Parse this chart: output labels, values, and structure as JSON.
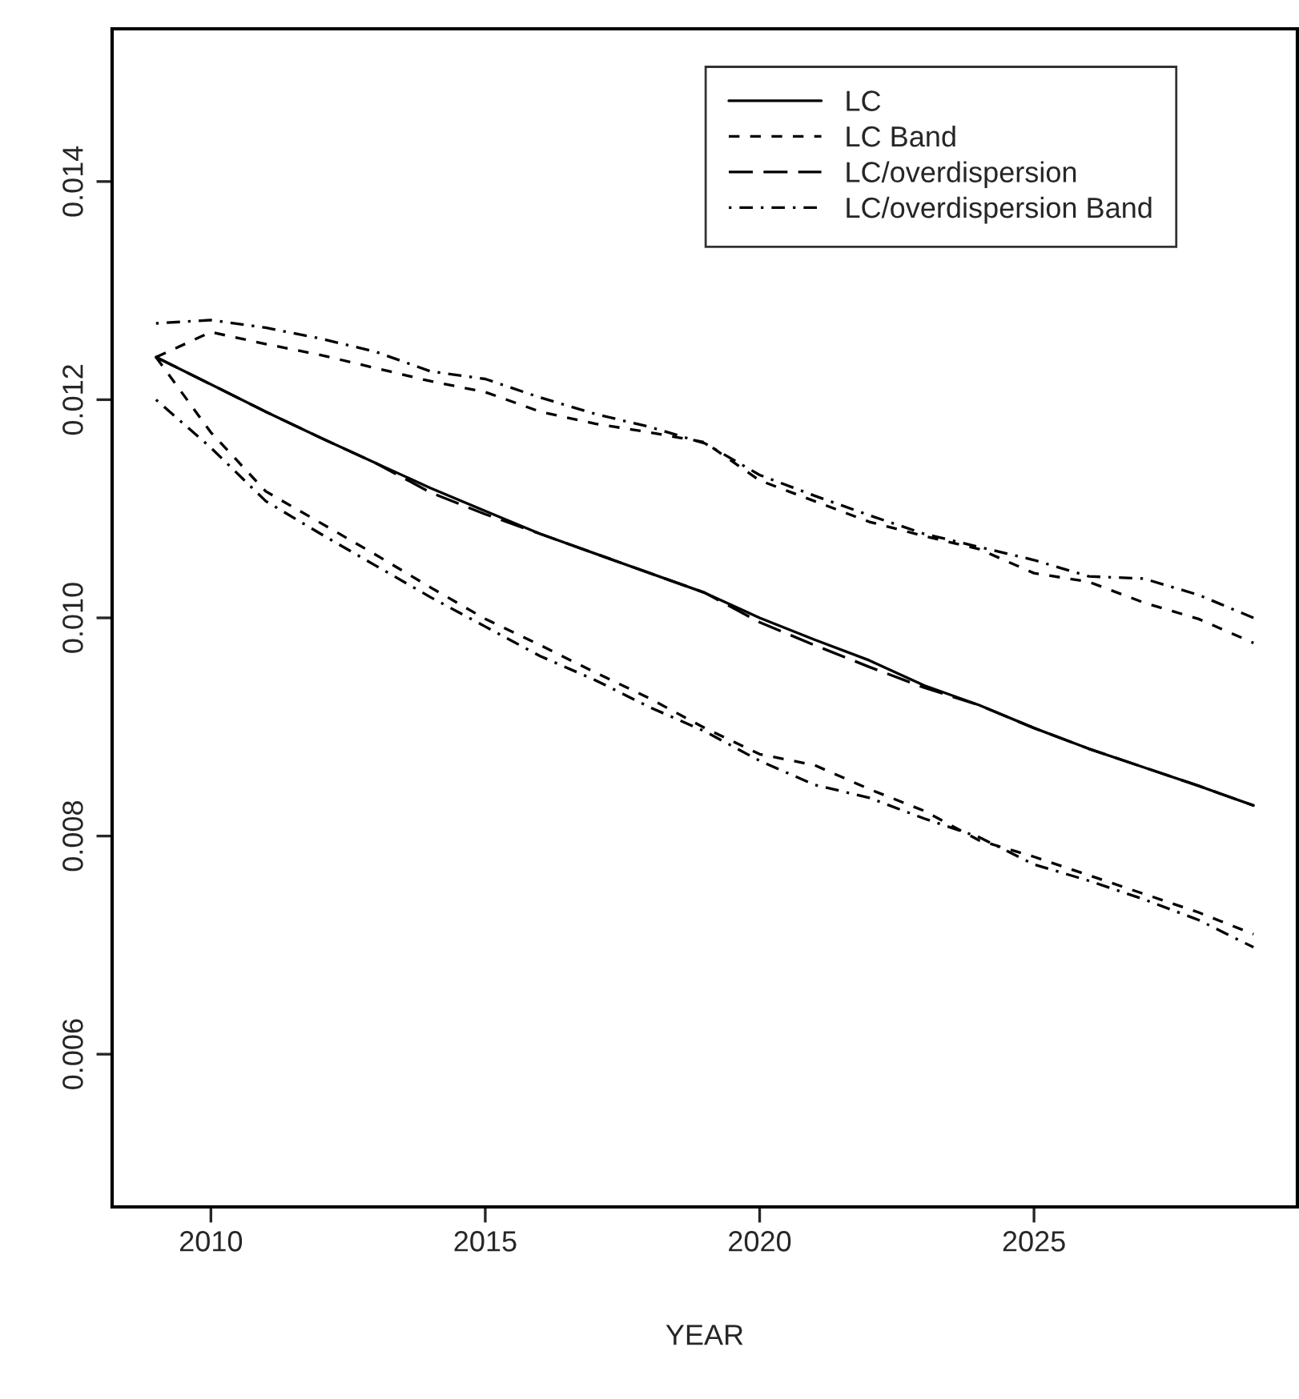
{
  "chart_data": {
    "type": "line",
    "xlabel": "YEAR",
    "x": [
      2009,
      2010,
      2011,
      2012,
      2013,
      2014,
      2015,
      2016,
      2017,
      2018,
      2019,
      2020,
      2021,
      2022,
      2023,
      2024,
      2025,
      2026,
      2027,
      2028,
      2029
    ],
    "xlim": [
      2008.2,
      2029.8
    ],
    "xticks": [
      2010,
      2015,
      2020,
      2025
    ],
    "ylim": [
      0.0046,
      0.0154
    ],
    "yticks": [
      0.006,
      0.008,
      {
        "value": 0.01,
        "label": "0.010"
      },
      0.012,
      0.014
    ],
    "grid": false,
    "legend": "top right",
    "marker": "none",
    "series": [
      {
        "name": "LC",
        "color": "#000000",
        "line_style": "solid",
        "values": [
          0.01239,
          0.01214,
          0.01189,
          0.01165,
          0.01142,
          0.01119,
          0.01098,
          0.01077,
          0.01059,
          0.01041,
          0.01023,
          0.01,
          0.0098,
          0.00961,
          0.00938,
          0.0092,
          0.00899,
          0.0088,
          0.00863,
          0.00846,
          0.00828
        ]
      },
      {
        "name": "LC Band",
        "color": "#000000",
        "line_style": "dashed",
        "values": [
          0.01239,
          0.01262,
          0.01251,
          0.01241,
          0.01229,
          0.01217,
          0.01207,
          0.01189,
          0.01178,
          0.0117,
          0.01161,
          0.01126,
          0.01107,
          0.01088,
          0.01075,
          0.01063,
          0.01041,
          0.01033,
          0.01014,
          0.00999,
          0.00977
        ]
      },
      {
        "name": "LC/overdispersion",
        "color": "#000000",
        "line_style": "longdash",
        "values": [
          0.01239,
          0.01214,
          0.01189,
          0.01165,
          0.01142,
          0.01115,
          0.01095,
          0.01077,
          0.01059,
          0.01041,
          0.01023,
          0.00996,
          0.00975,
          0.00955,
          0.00936,
          0.0092,
          0.00899,
          0.0088,
          0.00863,
          0.00846,
          0.00828
        ]
      },
      {
        "name": "LC/overdispersion Band",
        "color": "#000000",
        "line_style": "dashdot",
        "values": [
          0.0127,
          0.01273,
          0.01266,
          0.01256,
          0.01244,
          0.01226,
          0.01219,
          0.01202,
          0.01187,
          0.01175,
          0.0116,
          0.01131,
          0.01112,
          0.01094,
          0.01077,
          0.01065,
          0.01053,
          0.01038,
          0.01036,
          0.01021,
          0.01
        ]
      },
      {
        "color": "#000000",
        "line_style": "dashed",
        "values": [
          0.01239,
          0.0117,
          0.01116,
          0.01087,
          0.01058,
          0.01028,
          0.00999,
          0.00975,
          0.0095,
          0.00926,
          0.00899,
          0.00875,
          0.00865,
          0.00843,
          0.00823,
          0.00796,
          0.00781,
          0.00764,
          0.00747,
          0.0073,
          0.0071
        ]
      },
      {
        "color": "#000000",
        "line_style": "dashdot",
        "values": [
          0.012,
          0.01156,
          0.01107,
          0.01077,
          0.01048,
          0.01019,
          0.00992,
          0.00965,
          0.00943,
          0.00918,
          0.00896,
          0.00869,
          0.00847,
          0.00835,
          0.00816,
          0.00799,
          0.00774,
          0.00759,
          0.00742,
          0.00723,
          0.00698
        ]
      }
    ]
  }
}
